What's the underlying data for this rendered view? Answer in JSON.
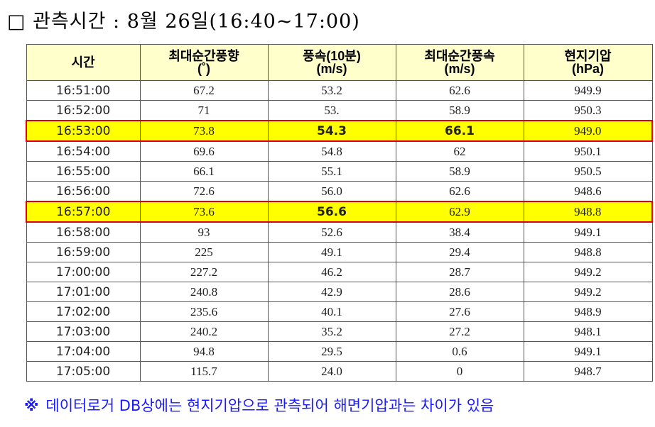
{
  "title": "□ 관측시간 : 8월 26일(16:40~17:00)",
  "table": {
    "headers": [
      {
        "line1": "시간",
        "line2": ""
      },
      {
        "line1": "최대순간풍향",
        "line2": "(˚)"
      },
      {
        "line1": "풍속(10분)",
        "line2": "(m/s)"
      },
      {
        "line1": "최대순간풍속",
        "line2": "(m/s)"
      },
      {
        "line1": "현지기압",
        "line2": "(hPa)"
      }
    ],
    "rows": [
      {
        "time": "16:51:00",
        "dir": "67.2",
        "ws10": "53.2",
        "gust": "62.6",
        "pres": "949.9",
        "highlight": false
      },
      {
        "time": "16:52:00",
        "dir": "71",
        "ws10": "53.",
        "gust": "58.9",
        "pres": "950.3",
        "highlight": false
      },
      {
        "time": "16:53:00",
        "dir": "73.8",
        "ws10": "54.3",
        "gust": "66.1",
        "pres": "949.0",
        "highlight": true,
        "bold": [
          "ws10",
          "gust"
        ]
      },
      {
        "time": "16:54:00",
        "dir": "69.6",
        "ws10": "54.8",
        "gust": "62",
        "pres": "950.1",
        "highlight": false
      },
      {
        "time": "16:55:00",
        "dir": "66.1",
        "ws10": "55.1",
        "gust": "58.9",
        "pres": "950.5",
        "highlight": false
      },
      {
        "time": "16:56:00",
        "dir": "72.6",
        "ws10": "56.0",
        "gust": "62.6",
        "pres": "948.6",
        "highlight": false
      },
      {
        "time": "16:57:00",
        "dir": "73.6",
        "ws10": "56.6",
        "gust": "62.9",
        "pres": "948.8",
        "highlight": true,
        "bold": [
          "ws10"
        ]
      },
      {
        "time": "16:58:00",
        "dir": "93",
        "ws10": "52.6",
        "gust": "38.4",
        "pres": "949.1",
        "highlight": false
      },
      {
        "time": "16:59:00",
        "dir": "225",
        "ws10": "49.1",
        "gust": "29.4",
        "pres": "948.8",
        "highlight": false
      },
      {
        "time": "17:00:00",
        "dir": "227.2",
        "ws10": "46.2",
        "gust": "28.7",
        "pres": "949.2",
        "highlight": false
      },
      {
        "time": "17:01:00",
        "dir": "240.8",
        "ws10": "42.9",
        "gust": "28.6",
        "pres": "949.2",
        "highlight": false
      },
      {
        "time": "17:02:00",
        "dir": "235.6",
        "ws10": "40.1",
        "gust": "27.6",
        "pres": "948.9",
        "highlight": false
      },
      {
        "time": "17:03:00",
        "dir": "240.2",
        "ws10": "35.2",
        "gust": "27.2",
        "pres": "948.1",
        "highlight": false
      },
      {
        "time": "17:04:00",
        "dir": "94.8",
        "ws10": "29.5",
        "gust": "0.6",
        "pres": "949.1",
        "highlight": false
      },
      {
        "time": "17:05:00",
        "dir": "115.7",
        "ws10": "24.0",
        "gust": "0",
        "pres": "948.7",
        "highlight": false
      }
    ]
  },
  "note": {
    "mark": "※",
    "text": "데이터로거 DB상에는 현지기압으로 관측되어 해면기압과는 차이가 있음"
  },
  "colors": {
    "header_bg": "#ffffcc",
    "highlight_bg": "#ffff00",
    "highlight_border": "#e00000",
    "note_text": "#1a1aff"
  }
}
